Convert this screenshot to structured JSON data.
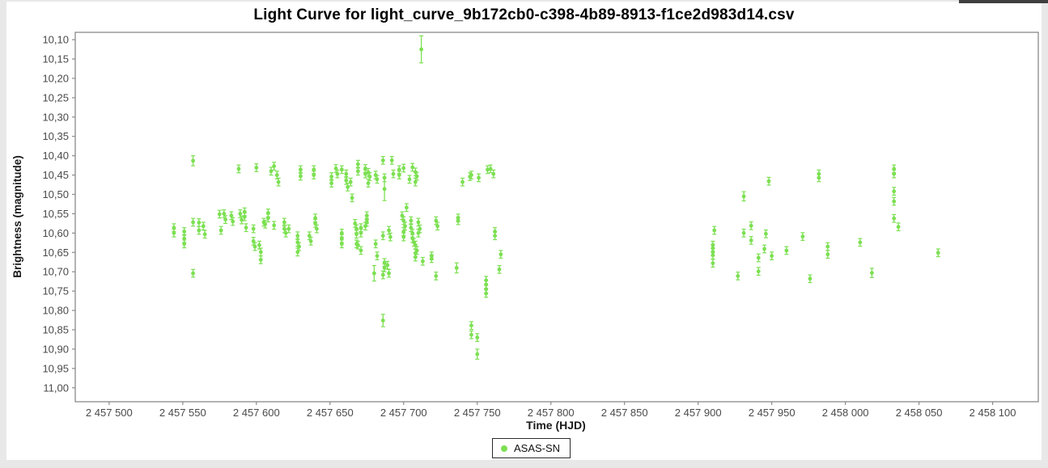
{
  "page": {
    "title": "Light Curve for light_curve_9b172cb0-c398-4b89-8913-f1ce2d983d14.csv"
  },
  "legend": {
    "label": "ASAS-SN"
  },
  "colors": {
    "series_green": "#7CE052",
    "plot_border": "#8a8a8a",
    "tick_text": "#4a4a4a",
    "axis_label_text": "#1a1a1a",
    "page_frame": "#e8e8e8",
    "artifact_bar": "#3f3f3f"
  },
  "chart_data": {
    "type": "scatter",
    "title": "Light Curve for light_curve_9b172cb0-c398-4b89-8913-f1ce2d983d14.csv",
    "xlabel": "Time (HJD)",
    "ylabel": "Brightness (magnitude)",
    "legend_position": "bottom",
    "grid": false,
    "y_inverted": true,
    "xlim": [
      2457477,
      2458131
    ],
    "ylim": [
      10.081,
      11.036
    ],
    "x_ticks": [
      2457500,
      2457550,
      2457600,
      2457650,
      2457700,
      2457750,
      2457800,
      2457850,
      2457900,
      2457950,
      2458000,
      2458050,
      2458100
    ],
    "x_tick_labels": [
      "2 457 500",
      "2 457 550",
      "2 457 600",
      "2 457 650",
      "2 457 700",
      "2 457 750",
      "2 457 800",
      "2 457 850",
      "2 457 900",
      "2 457 950",
      "2 458 000",
      "2 458 050",
      "2 458 100"
    ],
    "y_ticks": [
      10.1,
      10.15,
      10.2,
      10.25,
      10.3,
      10.35,
      10.4,
      10.45,
      10.5,
      10.55,
      10.6,
      10.65,
      10.7,
      10.75,
      10.8,
      10.85,
      10.9,
      10.95,
      11.0
    ],
    "y_tick_labels": [
      "10,10",
      "10,15",
      "10,20",
      "10,25",
      "10,30",
      "10,35",
      "10,40",
      "10,45",
      "10,50",
      "10,55",
      "10,60",
      "10,65",
      "10,70",
      "10,75",
      "10,80",
      "10,85",
      "10,90",
      "10,95",
      "11,00"
    ],
    "series": [
      {
        "name": "ASAS-SN",
        "color": "#7CE052",
        "marker": "circle",
        "default_err": 0.01,
        "points": [
          [
            2457544,
            10.586
          ],
          [
            2457544,
            10.6
          ],
          [
            2457551,
            10.596
          ],
          [
            2457551,
            10.614
          ],
          [
            2457551,
            10.628
          ],
          [
            2457557,
            10.413,
            0.013
          ],
          [
            2457557,
            10.572
          ],
          [
            2457557,
            10.704
          ],
          [
            2457561,
            10.573
          ],
          [
            2457561,
            10.593
          ],
          [
            2457564,
            10.582
          ],
          [
            2457565,
            10.603
          ],
          [
            2457575,
            10.551
          ],
          [
            2457576,
            10.593
          ],
          [
            2457578,
            10.55
          ],
          [
            2457579,
            10.565
          ],
          [
            2457583,
            10.555
          ],
          [
            2457584,
            10.57
          ],
          [
            2457588,
            10.434
          ],
          [
            2457589,
            10.55
          ],
          [
            2457590,
            10.566
          ],
          [
            2457592,
            10.545
          ],
          [
            2457592,
            10.558
          ],
          [
            2457593,
            10.586
          ],
          [
            2457598,
            10.589
          ],
          [
            2457598,
            10.621
          ],
          [
            2457599,
            10.635
          ],
          [
            2457600,
            10.431
          ],
          [
            2457602,
            10.631
          ],
          [
            2457603,
            10.649
          ],
          [
            2457603,
            10.669
          ],
          [
            2457605,
            10.572
          ],
          [
            2457606,
            10.577
          ],
          [
            2457608,
            10.548
          ],
          [
            2457608,
            10.561
          ],
          [
            2457610,
            10.44
          ],
          [
            2457612,
            10.427
          ],
          [
            2457612,
            10.58
          ],
          [
            2457614,
            10.45
          ],
          [
            2457615,
            10.468
          ],
          [
            2457619,
            10.572
          ],
          [
            2457619,
            10.589
          ],
          [
            2457620,
            10.6
          ],
          [
            2457622,
            10.589
          ],
          [
            2457628,
            10.607
          ],
          [
            2457628,
            10.624
          ],
          [
            2457629,
            10.635
          ],
          [
            2457628,
            10.649
          ],
          [
            2457630,
            10.436
          ],
          [
            2457630,
            10.453
          ],
          [
            2457636,
            10.607
          ],
          [
            2457637,
            10.621
          ],
          [
            2457639,
            10.436
          ],
          [
            2457639,
            10.45
          ],
          [
            2457640,
            10.561
          ],
          [
            2457640,
            10.575
          ],
          [
            2457641,
            10.589
          ],
          [
            2457651,
            10.454
          ],
          [
            2457651,
            10.471
          ],
          [
            2457654,
            10.433
          ],
          [
            2457655,
            10.447
          ],
          [
            2457658,
            10.436
          ],
          [
            2457658,
            10.6
          ],
          [
            2457658,
            10.614
          ],
          [
            2457658,
            10.628
          ],
          [
            2457661,
            10.447
          ],
          [
            2457661,
            10.464
          ],
          [
            2457662,
            10.481
          ],
          [
            2457664,
            10.468
          ],
          [
            2457665,
            10.509
          ],
          [
            2457667,
            10.575
          ],
          [
            2457668,
            10.589
          ],
          [
            2457668,
            10.603
          ],
          [
            2457668,
            10.628
          ],
          [
            2457669,
            10.631
          ],
          [
            2457669,
            10.422
          ],
          [
            2457669,
            10.44
          ],
          [
            2457671,
            10.586
          ],
          [
            2457671,
            10.6
          ],
          [
            2457671,
            10.645
          ],
          [
            2457674,
            10.433
          ],
          [
            2457674,
            10.447
          ],
          [
            2457674,
            10.582
          ],
          [
            2457675,
            10.555
          ],
          [
            2457675,
            10.565
          ],
          [
            2457675,
            10.572
          ],
          [
            2457676,
            10.443
          ],
          [
            2457676,
            10.471
          ],
          [
            2457677,
            10.454
          ],
          [
            2457680,
            10.704,
            0.02
          ],
          [
            2457681,
            10.45
          ],
          [
            2457681,
            10.628
          ],
          [
            2457682,
            10.461
          ],
          [
            2457682,
            10.659
          ],
          [
            2457686,
            10.412
          ],
          [
            2457686,
            10.607
          ],
          [
            2457686,
            10.708
          ],
          [
            2457686,
            10.826,
            0.016
          ],
          [
            2457687,
            10.457
          ],
          [
            2457687,
            10.486,
            0.03
          ],
          [
            2457687,
            10.676
          ],
          [
            2457687,
            10.69
          ],
          [
            2457689,
            10.683
          ],
          [
            2457690,
            10.704
          ],
          [
            2457690,
            10.593
          ],
          [
            2457691,
            10.61
          ],
          [
            2457692,
            10.412
          ],
          [
            2457693,
            10.447
          ],
          [
            2457697,
            10.436
          ],
          [
            2457697,
            10.45
          ],
          [
            2457699,
            10.555
          ],
          [
            2457700,
            10.432
          ],
          [
            2457700,
            10.568
          ],
          [
            2457700,
            10.596
          ],
          [
            2457700,
            10.61
          ],
          [
            2457701,
            10.582
          ],
          [
            2457702,
            10.534
          ],
          [
            2457704,
            10.461
          ],
          [
            2457705,
            10.568
          ],
          [
            2457705,
            10.586
          ],
          [
            2457706,
            10.43
          ],
          [
            2457706,
            10.6
          ],
          [
            2457706,
            10.614
          ],
          [
            2457707,
            10.624
          ],
          [
            2457708,
            10.442
          ],
          [
            2457708,
            10.468
          ],
          [
            2457708,
            10.631
          ],
          [
            2457708,
            10.652
          ],
          [
            2457708,
            10.662
          ],
          [
            2457709,
            10.453
          ],
          [
            2457709,
            10.645
          ],
          [
            2457710,
            10.572
          ],
          [
            2457710,
            10.6
          ],
          [
            2457711,
            10.589
          ],
          [
            2457712,
            10.125,
            0.035
          ],
          [
            2457713,
            10.673
          ],
          [
            2457719,
            10.659
          ],
          [
            2457719,
            10.666
          ],
          [
            2457722,
            10.568
          ],
          [
            2457722,
            10.711
          ],
          [
            2457723,
            10.582
          ],
          [
            2457736,
            10.69,
            0.013
          ],
          [
            2457737,
            10.561
          ],
          [
            2457737,
            10.568
          ],
          [
            2457740,
            10.468
          ],
          [
            2457745,
            10.454
          ],
          [
            2457746,
            10.45
          ],
          [
            2457746,
            10.839
          ],
          [
            2457746,
            10.863
          ],
          [
            2457750,
            10.87
          ],
          [
            2457750,
            10.913,
            0.013
          ],
          [
            2457751,
            10.457
          ],
          [
            2457756,
            10.722
          ],
          [
            2457756,
            10.733
          ],
          [
            2457756,
            10.745
          ],
          [
            2457756,
            10.756
          ],
          [
            2457757,
            10.436
          ],
          [
            2457759,
            10.434
          ],
          [
            2457761,
            10.447
          ],
          [
            2457762,
            10.596
          ],
          [
            2457762,
            10.607
          ],
          [
            2457765,
            10.694
          ],
          [
            2457766,
            10.655
          ],
          [
            2457910,
            10.631
          ],
          [
            2457910,
            10.639
          ],
          [
            2457910,
            10.649
          ],
          [
            2457910,
            10.657
          ],
          [
            2457910,
            10.678
          ],
          [
            2457911,
            10.593
          ],
          [
            2457927,
            10.711
          ],
          [
            2457931,
            10.505,
            0.012
          ],
          [
            2457931,
            10.6
          ],
          [
            2457936,
            10.581
          ],
          [
            2457936,
            10.619
          ],
          [
            2457941,
            10.664
          ],
          [
            2457941,
            10.699
          ],
          [
            2457945,
            10.641
          ],
          [
            2457946,
            10.602
          ],
          [
            2457948,
            10.466
          ],
          [
            2457950,
            10.659
          ],
          [
            2457960,
            10.645
          ],
          [
            2457971,
            10.609
          ],
          [
            2457976,
            10.718
          ],
          [
            2457982,
            10.447
          ],
          [
            2457982,
            10.457
          ],
          [
            2457988,
            10.635
          ],
          [
            2457988,
            10.655
          ],
          [
            2458010,
            10.624
          ],
          [
            2458018,
            10.703,
            0.012
          ],
          [
            2458033,
            10.434
          ],
          [
            2458033,
            10.447
          ],
          [
            2458033,
            10.492
          ],
          [
            2458033,
            10.518
          ],
          [
            2458033,
            10.562
          ],
          [
            2458036,
            10.584
          ],
          [
            2458063,
            10.651
          ]
        ]
      }
    ]
  }
}
